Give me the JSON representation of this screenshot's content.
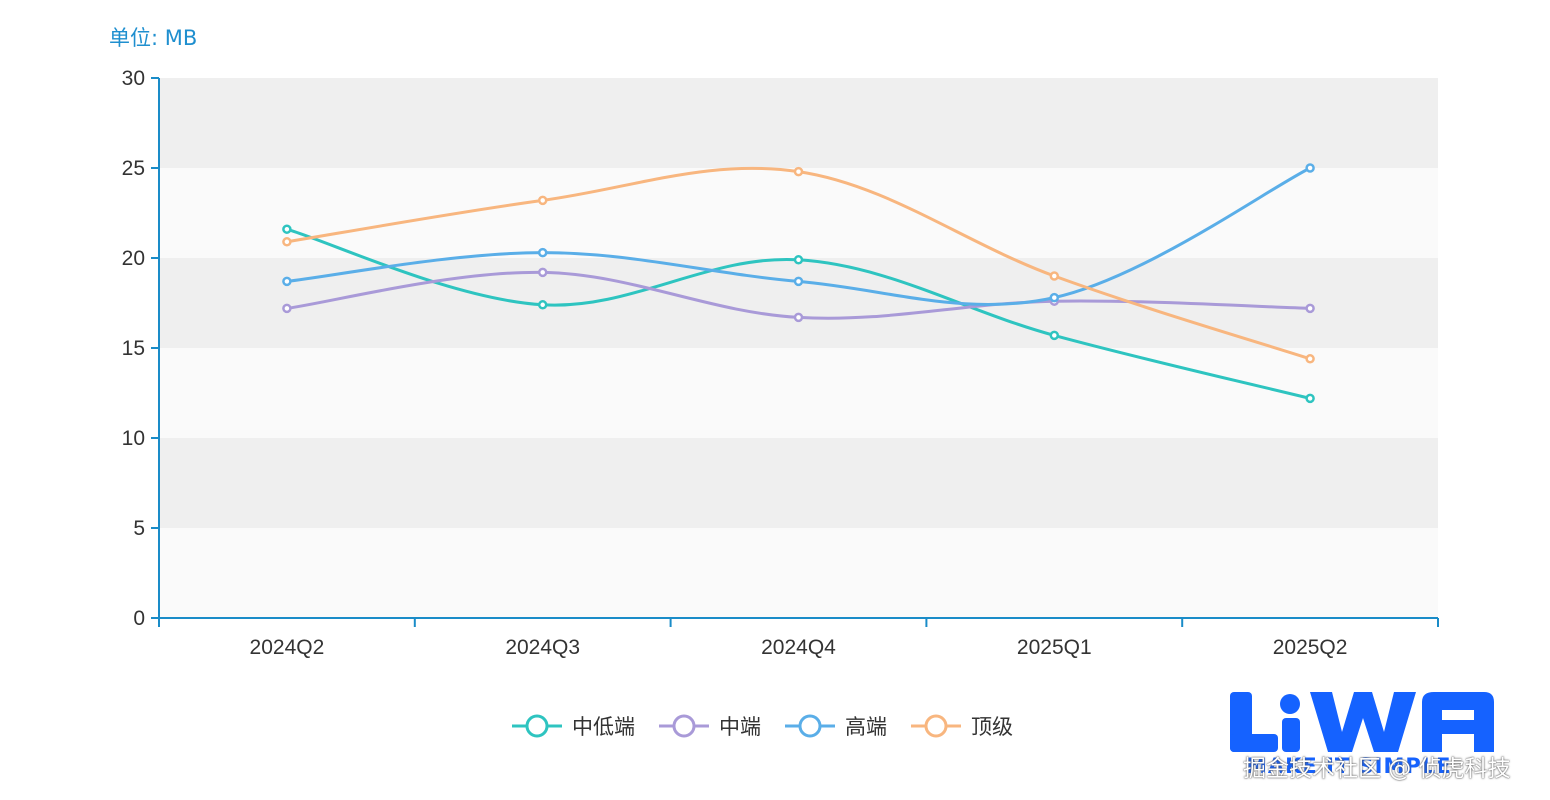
{
  "chart_data": {
    "type": "line",
    "unit_label": "单位: MB",
    "categories": [
      "2024Q2",
      "2024Q3",
      "2024Q4",
      "2025Q1",
      "2025Q2"
    ],
    "ylim": [
      0,
      30
    ],
    "yticks": [
      0,
      5,
      10,
      15,
      20,
      25,
      30
    ],
    "grid": "alternating horizontal bands",
    "legend_position": "bottom-center",
    "series": [
      {
        "name": "中低端",
        "color": "#2ec4c0",
        "values": [
          21.6,
          17.4,
          19.9,
          15.7,
          12.2
        ]
      },
      {
        "name": "中端",
        "color": "#a99ad8",
        "values": [
          17.2,
          19.2,
          16.7,
          17.6,
          17.2
        ]
      },
      {
        "name": "高端",
        "color": "#5aaee8",
        "values": [
          18.7,
          20.3,
          18.7,
          17.8,
          25.0
        ]
      },
      {
        "name": "顶级",
        "color": "#f8b67f",
        "values": [
          20.9,
          23.2,
          24.8,
          19.0,
          14.4
        ]
      }
    ]
  },
  "watermark": {
    "logo_text": "MAKE IT SIMPLE",
    "text": "掘金技术社区 @ 侦虎科技"
  },
  "colors": {
    "axis": "#1a8cc8",
    "band_dark": "#efefef",
    "band_light": "#fafafa",
    "label": "#333333"
  }
}
